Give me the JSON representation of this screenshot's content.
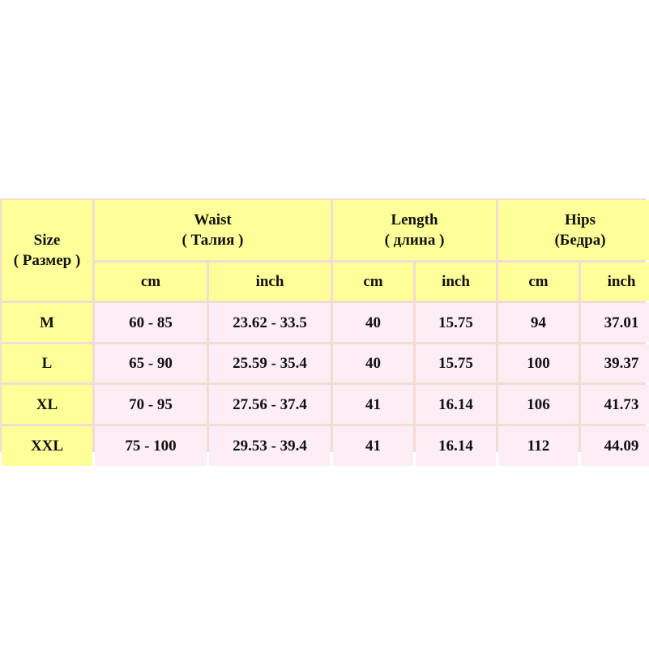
{
  "colors": {
    "header": "#ffff99",
    "body": "#fdeef6",
    "border": "#f1ddd2"
  },
  "headers": {
    "size": [
      "Size",
      "( Размер )"
    ],
    "waist": [
      "Waist",
      "( Талия )"
    ],
    "length": [
      "Length",
      "( длина )"
    ],
    "hips": [
      "Hips",
      "(Бедра)"
    ],
    "units": [
      "cm",
      "inch",
      "cm",
      "inch",
      "cm",
      "inch"
    ]
  },
  "rows": [
    [
      "M",
      "60 - 85",
      "23.62 - 33.5",
      "40",
      "15.75",
      "94",
      "37.01"
    ],
    [
      "L",
      "65 - 90",
      "25.59 - 35.4",
      "40",
      "15.75",
      "100",
      "39.37"
    ],
    [
      "XL",
      "70 - 95",
      "27.56 - 37.4",
      "41",
      "16.14",
      "106",
      "41.73"
    ],
    [
      "XXL",
      "75 - 100",
      "29.53 - 39.4",
      "41",
      "16.14",
      "112",
      "44.09"
    ]
  ]
}
